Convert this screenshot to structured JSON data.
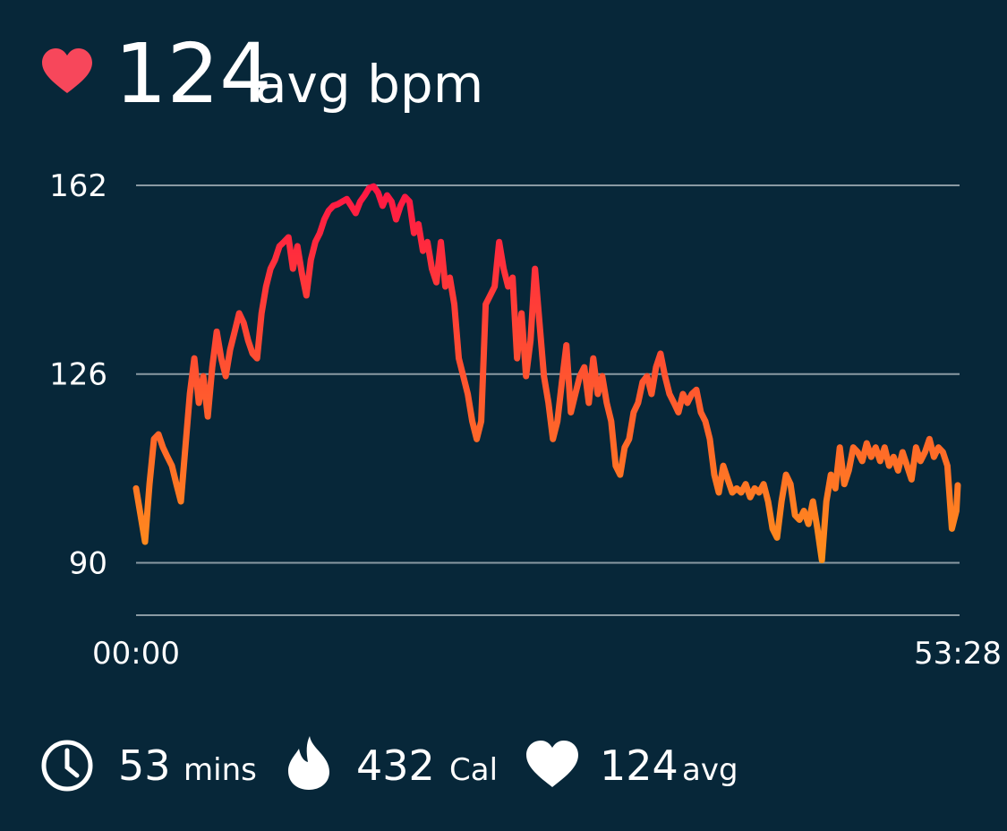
{
  "header": {
    "value": 124,
    "unit": "avg bpm"
  },
  "chart_data": {
    "type": "line",
    "x": [
      0,
      17.5,
      35,
      52.5,
      70,
      87.5,
      105,
      122.5,
      140,
      157.5,
      175,
      192.5,
      210,
      227.5,
      245,
      262.5,
      280,
      297.5,
      315,
      332.5,
      350,
      367.5,
      385,
      402.5,
      420,
      437.5,
      455,
      472.5,
      490,
      507.5,
      525,
      542.5,
      560,
      577.5,
      595,
      612.5,
      630,
      647.5,
      665,
      682.5,
      700,
      717.5,
      735,
      752.5,
      770,
      787.5,
      805,
      822.5,
      840,
      857.5,
      875,
      892.5,
      910,
      927.5,
      945,
      962.5,
      980,
      997.5,
      1015,
      1032.5,
      1050,
      1067.5,
      1085,
      1102.5,
      1120,
      1137.5,
      1155,
      1172.5,
      1190,
      1207.5,
      1225,
      1242.5,
      1260,
      1277.5,
      1295,
      1312.5,
      1330,
      1347.5,
      1365,
      1382.5,
      1400,
      1417.5,
      1435,
      1452.5,
      1470,
      1487.5,
      1505,
      1522.5,
      1540,
      1557.5,
      1575,
      1592.5,
      1610,
      1627.5,
      1645,
      1662.5,
      1680,
      1697.5,
      1715,
      1732.5,
      1750,
      1767.5,
      1785,
      1802.5,
      1820,
      1837.5,
      1855,
      1872.5,
      1890,
      1907.5,
      1925,
      1942.5,
      1960,
      1977.5,
      1995,
      2012.5,
      2030,
      2047.5,
      2065,
      2082.5,
      2100,
      2117.5,
      2135,
      2152.5,
      2170,
      2187.5,
      2205,
      2222.5,
      2240,
      2257.5,
      2275,
      2292.5,
      2310,
      2327.5,
      2345,
      2362.5,
      2380,
      2397.5,
      2415,
      2432.5,
      2450,
      2467.5,
      2485,
      2502.5,
      2520,
      2537.5,
      2555,
      2572.5,
      2590,
      2607.5,
      2625,
      2642.5,
      2660,
      2677.5,
      2695,
      2712.5,
      2730,
      2747.5,
      2765,
      2782.5,
      2800,
      2817.5,
      2835,
      2852.5,
      2870,
      2887.5,
      2905,
      2922.5,
      2940,
      2957.5,
      2975,
      2992.5,
      3010,
      3027.5,
      3045,
      3062.5,
      3080,
      3097.5,
      3115,
      3132.5,
      3150,
      3167.5,
      3185,
      3202.5,
      3208
    ],
    "values": [
      104.2,
      99.1,
      94,
      105,
      113.6,
      114.5,
      112,
      110.2,
      108.5,
      105,
      101.7,
      112,
      122.2,
      129,
      120.5,
      125.6,
      117.9,
      127.3,
      134.1,
      129,
      125.6,
      130.7,
      134.1,
      137.6,
      135.8,
      132.4,
      129.9,
      129,
      137.6,
      142.7,
      146.1,
      147.8,
      150.4,
      151.2,
      152.1,
      146.1,
      150.4,
      145.2,
      141,
      147.8,
      151.2,
      152.9,
      155.5,
      157.2,
      158.1,
      158.4,
      158.9,
      159.4,
      158.1,
      156.7,
      158.9,
      160.1,
      161.5,
      161.8,
      160.6,
      158.1,
      160.1,
      158.9,
      155.5,
      158.1,
      159.8,
      158.9,
      152.9,
      154.6,
      149.5,
      151.2,
      146.1,
      143.5,
      151.2,
      142.7,
      144.4,
      139.3,
      129,
      125.6,
      122.2,
      117,
      113.6,
      117,
      139.3,
      141,
      142.7,
      151.2,
      146.1,
      142.7,
      144.4,
      129,
      137.6,
      125.6,
      132.4,
      146.1,
      135.8,
      125.6,
      120.5,
      113.6,
      117,
      124.5,
      131.5,
      118.7,
      122.2,
      125.6,
      127.3,
      120.5,
      129,
      122.2,
      125.6,
      120.5,
      117,
      108.5,
      106.8,
      112,
      113.6,
      118.7,
      120.5,
      124.5,
      125.6,
      122.2,
      127.3,
      129.9,
      125.6,
      122.2,
      120.5,
      118.7,
      122.2,
      120.5,
      122.2,
      123,
      118.7,
      117,
      113.6,
      106.8,
      103.4,
      108.5,
      105.9,
      103.4,
      104.2,
      103.4,
      105,
      102.5,
      104.2,
      103.4,
      105,
      101.7,
      96.5,
      94.8,
      101.7,
      106.8,
      105,
      99.1,
      98.2,
      99.9,
      97.4,
      101.7,
      96.5,
      90.5,
      101.7,
      106.8,
      104.2,
      112,
      105,
      107.6,
      112,
      111.1,
      109.4,
      112.8,
      110.2,
      112,
      109.4,
      112,
      108.5,
      110.2,
      107.6,
      111.1,
      108.5,
      105.9,
      112,
      109.4,
      111.1,
      113.6,
      110.2,
      112,
      111.1,
      108.5,
      96.5,
      99.9,
      104.8
    ],
    "colors": [
      "#ff1744",
      "#ff8f1c"
    ],
    "xlim": [
      0,
      3208
    ],
    "xticks": [
      {
        "value": 0,
        "label": "00:00"
      },
      {
        "value": 3208,
        "label": "53:28"
      }
    ],
    "ylim": [
      80,
      162
    ],
    "yticks": [
      90,
      126,
      162
    ],
    "grid": true
  },
  "stats": [
    {
      "value": 53,
      "unit": "mins"
    },
    {
      "value": 432,
      "unit": "Cal"
    },
    {
      "value": 124,
      "unit": "avg"
    }
  ]
}
